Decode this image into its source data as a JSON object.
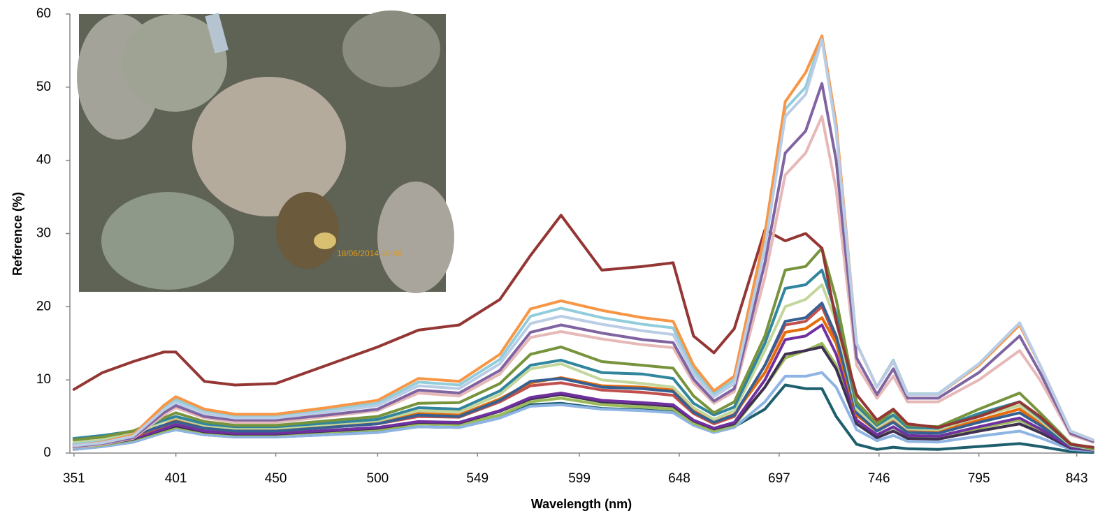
{
  "chart_data": {
    "type": "line",
    "x_label": "Wavelength (nm)",
    "y_label": "Reference (%)",
    "photo_stamp": "18/06/2014 10:49",
    "xlim": [
      349,
      851
    ],
    "xticks": [
      351,
      401,
      450,
      500,
      549,
      599,
      648,
      697,
      746,
      795,
      843
    ],
    "ylim": [
      0,
      60
    ],
    "yticks": [
      0,
      10,
      20,
      30,
      40,
      50,
      60
    ],
    "grid": false,
    "x": [
      351,
      365,
      380,
      395,
      401,
      415,
      430,
      450,
      475,
      500,
      520,
      540,
      560,
      575,
      590,
      610,
      630,
      645,
      655,
      665,
      675,
      690,
      700,
      710,
      718,
      725,
      735,
      745,
      753,
      760,
      775,
      795,
      815,
      825,
      840,
      851
    ],
    "series": [
      {
        "color": "#1e5f6e",
        "values": [
          0.5,
          0.9,
          1.5,
          2.8,
          3.2,
          2.5,
          2.2,
          2.2,
          2.5,
          2.9,
          3.6,
          3.5,
          4.8,
          6.6,
          6.8,
          6.1,
          5.9,
          5.6,
          3.9,
          2.9,
          3.6,
          6,
          9.3,
          8.8,
          8.8,
          5,
          1.2,
          0.5,
          0.8,
          0.6,
          0.5,
          0.9,
          1.3,
          0.9,
          0.2,
          0.1
        ]
      },
      {
        "color": "#8eb4e3",
        "values": [
          0.5,
          0.9,
          1.5,
          2.8,
          3.2,
          2.5,
          2.2,
          2.2,
          2.5,
          2.8,
          3.6,
          3.5,
          4.8,
          6.4,
          6.6,
          6.0,
          5.8,
          5.5,
          3.8,
          2.8,
          3.5,
          7,
          10.5,
          10.5,
          11,
          9,
          3.2,
          1.7,
          2.4,
          1.6,
          1.5,
          2.3,
          3,
          2.1,
          0.5,
          0.3
        ]
      },
      {
        "color": "#9bbb59",
        "values": [
          0.8,
          1.1,
          1.8,
          3.0,
          3.5,
          2.8,
          2.5,
          2.5,
          2.9,
          3.2,
          4.0,
          3.9,
          5.2,
          7.0,
          7.5,
          6.6,
          6.3,
          6.0,
          4.1,
          3.0,
          3.8,
          9,
          13,
          14,
          15,
          12,
          4,
          2.4,
          3.5,
          2.3,
          2.2,
          3.4,
          4.5,
          3.1,
          0.8,
          0.4
        ]
      },
      {
        "color": "#403152",
        "values": [
          0.8,
          1.2,
          1.9,
          3.2,
          3.7,
          2.9,
          2.6,
          2.6,
          3.0,
          3.4,
          4.2,
          4.1,
          5.7,
          7.4,
          8.0,
          7.0,
          6.7,
          6.4,
          4.4,
          3.3,
          4.0,
          9,
          13.5,
          14,
          14.5,
          11.5,
          4,
          2.1,
          3,
          2,
          1.9,
          3,
          4,
          2.8,
          0.7,
          0.4
        ]
      },
      {
        "color": "#7030a0",
        "values": [
          0.9,
          1.3,
          2.0,
          3.3,
          3.9,
          3.0,
          2.7,
          2.7,
          3.1,
          3.5,
          4.3,
          4.2,
          5.8,
          7.6,
          8.2,
          7.2,
          6.9,
          6.6,
          4.5,
          3.4,
          4.2,
          10,
          15.5,
          16,
          17.5,
          13.5,
          4.5,
          2.5,
          3.6,
          2.4,
          2.3,
          3.6,
          4.8,
          3.3,
          0.8,
          0.4
        ]
      },
      {
        "color": "#c0504d",
        "values": [
          1.1,
          1.5,
          2.2,
          3.7,
          4.3,
          3.4,
          3.0,
          3.0,
          3.5,
          4.0,
          5.0,
          4.9,
          7.0,
          9.2,
          9.6,
          8.6,
          8.3,
          7.9,
          5.4,
          4.0,
          5.0,
          12,
          17.5,
          18,
          20,
          15.5,
          5.3,
          3.3,
          4.8,
          3.2,
          3.1,
          5,
          6.5,
          4.4,
          1.1,
          0.5
        ]
      },
      {
        "color": "#e46c0a",
        "values": [
          1.2,
          1.6,
          2.3,
          3.8,
          4.5,
          3.5,
          3.1,
          3.1,
          3.6,
          4.1,
          5.4,
          5.2,
          7.4,
          9.6,
          10.3,
          9.2,
          9,
          8.6,
          5.8,
          4.2,
          5.3,
          11,
          16.5,
          17,
          18.5,
          15,
          5.2,
          3,
          4.3,
          2.9,
          2.8,
          4.5,
          6,
          4,
          1,
          0.5
        ]
      },
      {
        "color": "#376092",
        "values": [
          1.3,
          1.7,
          2.4,
          3.8,
          4.3,
          3.4,
          3.0,
          3.0,
          3.5,
          4.0,
          5.2,
          5.0,
          7.2,
          9.8,
          10.2,
          9,
          8.8,
          8.4,
          5.6,
          4.2,
          5.2,
          12,
          18,
          18.5,
          20.5,
          16,
          5.5,
          3,
          4.2,
          2.8,
          2.7,
          4.2,
          5.5,
          3.8,
          1,
          0.5
        ]
      },
      {
        "color": "#c3d69b",
        "values": [
          1.5,
          1.9,
          2.6,
          4.3,
          4.8,
          3.8,
          3.4,
          3.4,
          3.9,
          4.4,
          5.8,
          5.6,
          8.0,
          11.5,
          12.2,
          10,
          9.5,
          9,
          6.2,
          4.6,
          5.8,
          14,
          20,
          21,
          23,
          18,
          6,
          3.5,
          4.8,
          3.3,
          3.2,
          5,
          6.5,
          4.5,
          1.1,
          0.5
        ]
      },
      {
        "color": "#31859c",
        "values": [
          2.0,
          2.4,
          3.0,
          4.5,
          5.0,
          4.0,
          3.6,
          3.6,
          4.1,
          4.6,
          6.2,
          6.0,
          8.5,
          12,
          12.7,
          11,
          10.8,
          10.2,
          6.8,
          5.2,
          6.3,
          15,
          22.5,
          23,
          25,
          19,
          6.5,
          3.8,
          5.2,
          3.5,
          3.4,
          5.4,
          7,
          4.8,
          1.2,
          0.6
        ]
      },
      {
        "color": "#77933c",
        "values": [
          1.8,
          2.2,
          3.0,
          4.8,
          5.5,
          4.3,
          3.8,
          3.8,
          4.4,
          5.0,
          6.8,
          6.9,
          9.5,
          13.5,
          14.5,
          12.5,
          12,
          11.6,
          7.8,
          5.5,
          7.0,
          16,
          25,
          25.5,
          28,
          21,
          7,
          4,
          5.8,
          3.8,
          3.6,
          6,
          8.2,
          5.5,
          1.3,
          0.6
        ]
      },
      {
        "color": "#943634",
        "values": [
          8.7,
          11,
          12.5,
          13.8,
          13.8,
          9.8,
          9.3,
          9.5,
          12,
          14.5,
          16.8,
          17.5,
          21,
          27,
          32.5,
          25,
          25.5,
          26,
          16,
          13.7,
          17,
          30.5,
          29,
          30,
          28,
          18,
          8,
          4.5,
          6,
          4,
          3.5,
          5,
          7,
          5,
          1.2,
          0.8
        ]
      },
      {
        "color": "#e6b9b8",
        "values": [
          0.8,
          1.2,
          2.0,
          5.2,
          6.2,
          4.8,
          4.2,
          4.2,
          5.0,
          5.8,
          8.2,
          7.8,
          10.8,
          15.8,
          16.6,
          15.6,
          14.8,
          14.4,
          9.6,
          6.8,
          8.4,
          24,
          38,
          41,
          46,
          36,
          12,
          7.5,
          10.5,
          7,
          7,
          10,
          14,
          10,
          2.5,
          1.5
        ]
      },
      {
        "color": "#8064a2",
        "values": [
          0.9,
          1.3,
          2.1,
          5.5,
          6.5,
          5.0,
          4.5,
          4.5,
          5.2,
          6.0,
          8.6,
          8.2,
          11.3,
          16.5,
          17.5,
          16.4,
          15.5,
          15.1,
          10.1,
          7.1,
          8.8,
          26,
          41,
          44,
          50.5,
          40,
          13,
          8,
          11.5,
          7.5,
          7.5,
          11,
          16,
          11,
          2.7,
          1.6
        ]
      },
      {
        "color": "#92cddc",
        "values": [
          1.2,
          1.6,
          2.5,
          6.2,
          7.3,
          5.7,
          5.0,
          5.0,
          5.9,
          6.8,
          9.7,
          9.3,
          12.8,
          18.7,
          19.8,
          18.5,
          17.6,
          17.1,
          11.4,
          8.1,
          10.0,
          29,
          47,
          50,
          57,
          44,
          15,
          9,
          12.7,
          8.1,
          8.1,
          12.2,
          17.8,
          12,
          3,
          1.8
        ]
      },
      {
        "color": "#f79646",
        "values": [
          1.0,
          1.5,
          2.5,
          6.5,
          7.7,
          6.0,
          5.3,
          5.3,
          6.2,
          7.2,
          10.2,
          9.8,
          13.5,
          19.7,
          20.8,
          19.5,
          18.5,
          18,
          12,
          8.5,
          10.5,
          30,
          48,
          52,
          57,
          45,
          15,
          9,
          12.5,
          8,
          8,
          12,
          17.5,
          12,
          3,
          1.8
        ]
      },
      {
        "color": "#b9cde5",
        "values": [
          1.0,
          1.4,
          2.3,
          5.9,
          6.9,
          5.4,
          4.8,
          4.8,
          5.6,
          6.5,
          9.2,
          8.8,
          12.2,
          17.7,
          18.7,
          17.6,
          16.7,
          16.2,
          10.8,
          7.7,
          9.5,
          28,
          46,
          49,
          56.5,
          44,
          15,
          9,
          12.5,
          8,
          8,
          12.2,
          17.8,
          12,
          3,
          1.8
        ]
      }
    ]
  }
}
